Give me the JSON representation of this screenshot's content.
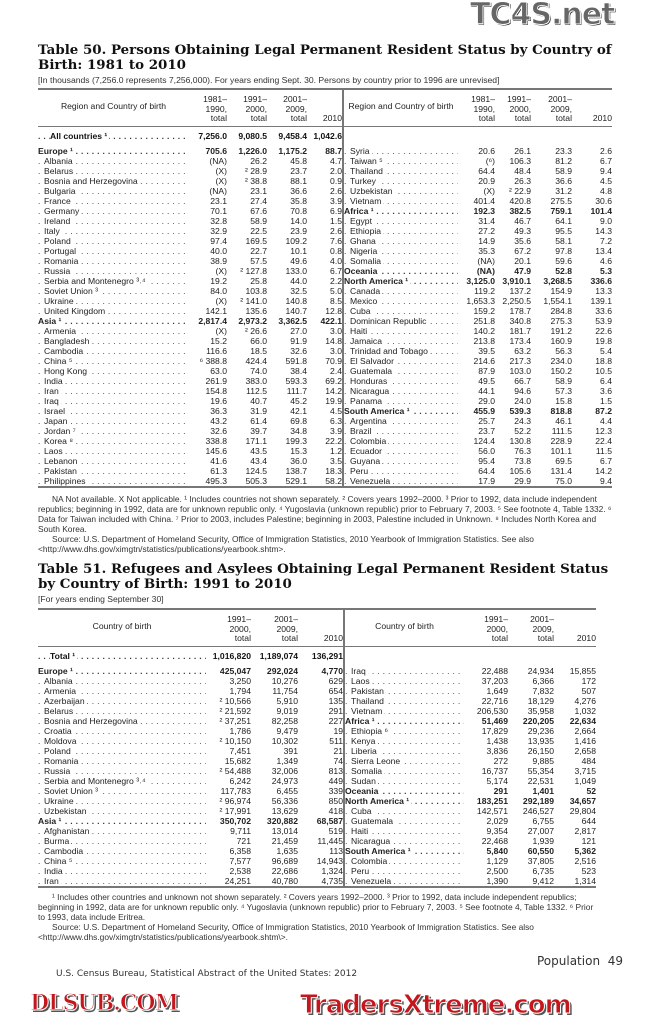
{
  "watermarks": {
    "top": "TC4S.net",
    "middle": "DLSUB.COM",
    "bottom": "TradersXtreme.com"
  },
  "table50": {
    "title_line1": "Table 50. Persons Obtaining Legal Permanent Resident Status by Country of",
    "title_line2": "Birth: 1981 to 2010",
    "subtitle": "[In thousands (7,256.0 represents 7,256,000). For years ending Sept. 30. Persons by country prior to 1996 are unrevised]",
    "headers": [
      "Region and Country of birth",
      "1981– 1990, total",
      "1991– 2000, total",
      "2001– 2009, total",
      "2010"
    ],
    "total": [
      "All countries ¹",
      "7,256.0",
      "9,080.5",
      "9,458.4",
      "1,042.6"
    ],
    "left_rows": [
      [
        "Europe ¹",
        "705.6",
        "1,226.0",
        "1,175.2",
        "88.7",
        1
      ],
      [
        "Albania",
        "(NA)",
        "26.2",
        "45.8",
        "4.7",
        0
      ],
      [
        "Belarus",
        "(X)",
        "² 28.9",
        "23.7",
        "2.0",
        0
      ],
      [
        "Bosnia and Herzegovina",
        "(X)",
        "² 38.8",
        "88.1",
        "0.9",
        0
      ],
      [
        "Bulgaria",
        "(NA)",
        "23.1",
        "36.6",
        "2.6",
        0
      ],
      [
        "France",
        "23.1",
        "27.4",
        "35.8",
        "3.9",
        0
      ],
      [
        "Germany",
        "70.1",
        "67.6",
        "70.8",
        "6.9",
        0
      ],
      [
        "Ireland",
        "32.8",
        "58.9",
        "14.0",
        "1.5",
        0
      ],
      [
        "Italy",
        "32.9",
        "22.5",
        "23.9",
        "2.6",
        0
      ],
      [
        "Poland",
        "97.4",
        "169.5",
        "109.2",
        "7.6",
        0
      ],
      [
        "Portugal",
        "40.0",
        "22.7",
        "10.1",
        "0.8",
        0
      ],
      [
        "Romania",
        "38.9",
        "57.5",
        "49.6",
        "4.0",
        0
      ],
      [
        "Russia",
        "(X)",
        "² 127.8",
        "133.0",
        "6.7",
        0
      ],
      [
        "Serbia and Montenegro ³˒⁴",
        "19.2",
        "25.8",
        "44.0",
        "2.2",
        0
      ],
      [
        "Soviet Union ³",
        "84.0",
        "103.8",
        "32.5",
        "5.0",
        0
      ],
      [
        "Ukraine",
        "(X)",
        "² 141.0",
        "140.8",
        "8.5",
        0
      ],
      [
        "United Kingdom",
        "142.1",
        "135.6",
        "140.7",
        "12.8",
        0
      ],
      [
        "Asia ¹",
        "2,817.4",
        "2,973.2",
        "3,362.5",
        "422.1",
        1
      ],
      [
        "Armenia",
        "(X)",
        "² 26.6",
        "27.0",
        "3.0",
        0
      ],
      [
        "Bangladesh",
        "15.2",
        "66.0",
        "91.9",
        "14.8",
        0
      ],
      [
        "Cambodia",
        "116.6",
        "18.5",
        "32.6",
        "3.0",
        0
      ],
      [
        "China ⁵",
        "⁶ 388.8",
        "424.4",
        "591.8",
        "70.9",
        0
      ],
      [
        "Hong Kong",
        "63.0",
        "74.0",
        "38.4",
        "2.4",
        0
      ],
      [
        "India",
        "261.9",
        "383.0",
        "593.3",
        "69.2",
        0
      ],
      [
        "Iran",
        "154.8",
        "112.5",
        "111.7",
        "14.2",
        0
      ],
      [
        "Iraq",
        "19.6",
        "40.7",
        "45.2",
        "19.9",
        0
      ],
      [
        "Israel",
        "36.3",
        "31.9",
        "42.1",
        "4.5",
        0
      ],
      [
        "Japan",
        "43.2",
        "61.4",
        "69.8",
        "6.3",
        0
      ],
      [
        "Jordan ⁷",
        "32.6",
        "39.7",
        "34.8",
        "3.9",
        0
      ],
      [
        "Korea ⁸",
        "338.8",
        "171.1",
        "199.3",
        "22.2",
        0
      ],
      [
        "Laos",
        "145.6",
        "43.5",
        "15.3",
        "1.2",
        0
      ],
      [
        "Lebanon",
        "41.6",
        "43.4",
        "36.0",
        "3.5",
        0
      ],
      [
        "Pakistan",
        "61.3",
        "124.5",
        "138.7",
        "18.3",
        0
      ],
      [
        "Philippines",
        "495.3",
        "505.3",
        "529.1",
        "58.2",
        0
      ]
    ],
    "right_rows": [
      [
        "Syria",
        "20.6",
        "26.1",
        "23.3",
        "2.6",
        0
      ],
      [
        "Taiwan ⁵",
        "(⁶)",
        "106.3",
        "81.2",
        "6.7",
        0
      ],
      [
        "Thailand",
        "64.4",
        "48.4",
        "58.9",
        "9.4",
        0
      ],
      [
        "Turkey",
        "20.9",
        "26.3",
        "36.6",
        "4.5",
        0
      ],
      [
        "Uzbekistan",
        "(X)",
        "² 22.9",
        "31.2",
        "4.8",
        0
      ],
      [
        "Vietnam",
        "401.4",
        "420.8",
        "275.5",
        "30.6",
        0
      ],
      [
        "Africa ¹",
        "192.3",
        "382.5",
        "759.1",
        "101.4",
        1
      ],
      [
        "Egypt",
        "31.4",
        "46.7",
        "64.1",
        "9.0",
        0
      ],
      [
        "Ethiopia",
        "27.2",
        "49.3",
        "95.5",
        "14.3",
        0
      ],
      [
        "Ghana",
        "14.9",
        "35.6",
        "58.1",
        "7.2",
        0
      ],
      [
        "Nigeria",
        "35.3",
        "67.2",
        "97.8",
        "13.4",
        0
      ],
      [
        "Somalia",
        "(NA)",
        "20.1",
        "59.6",
        "4.6",
        0
      ],
      [
        "Oceania",
        "(NA)",
        "47.9",
        "52.8",
        "5.3",
        1
      ],
      [
        "North America ¹",
        "3,125.0",
        "3,910.1",
        "3,268.5",
        "336.6",
        1
      ],
      [
        "Canada",
        "119.2",
        "137.2",
        "154.9",
        "13.3",
        0
      ],
      [
        "Mexico",
        "1,653.3",
        "2,250.5",
        "1,554.1",
        "139.1",
        0
      ],
      [
        "Cuba",
        "159.2",
        "178.7",
        "284.8",
        "33.6",
        0
      ],
      [
        "Dominican Republic",
        "251.8",
        "340.8",
        "275.3",
        "53.9",
        0
      ],
      [
        "Haiti",
        "140.2",
        "181.7",
        "191.2",
        "22.6",
        0
      ],
      [
        "Jamaica",
        "213.8",
        "173.4",
        "160.9",
        "19.8",
        0
      ],
      [
        "Trinidad and Tobago",
        "39.5",
        "63.2",
        "56.3",
        "5.4",
        0
      ],
      [
        "El Salvador",
        "214.6",
        "217.3",
        "234.0",
        "18.8",
        0
      ],
      [
        "Guatemala",
        "87.9",
        "103.0",
        "150.2",
        "10.5",
        0
      ],
      [
        "Honduras",
        "49.5",
        "66.7",
        "58.9",
        "6.4",
        0
      ],
      [
        "Nicaragua",
        "44.1",
        "94.6",
        "57.3",
        "3.6",
        0
      ],
      [
        "Panama",
        "29.0",
        "24.0",
        "15.8",
        "1.5",
        0
      ],
      [
        "South America ¹",
        "455.9",
        "539.3",
        "818.8",
        "87.2",
        1
      ],
      [
        "Argentina",
        "25.7",
        "24.3",
        "46.1",
        "4.4",
        0
      ],
      [
        "Brazil",
        "23.7",
        "52.2",
        "111.5",
        "12.3",
        0
      ],
      [
        "Colombia",
        "124.4",
        "130.8",
        "228.9",
        "22.4",
        0
      ],
      [
        "Ecuador",
        "56.0",
        "76.3",
        "101.1",
        "11.5",
        0
      ],
      [
        "Guyana",
        "95.4",
        "73.8",
        "69.5",
        "6.7",
        0
      ],
      [
        "Peru",
        "64.4",
        "105.6",
        "131.4",
        "14.2",
        0
      ],
      [
        "Venezuela",
        "17.9",
        "29.9",
        "75.0",
        "9.4",
        0
      ]
    ],
    "notes": "NA Not available. X Not applicable. ¹ Includes countries not shown separately. ² Covers years 1992–2000. ³ Prior to 1992, data include independent republics; beginning in 1992, data are for unknown republic only. ⁴ Yugoslavia (unknown republic) prior to February 7, 2003. ⁵ See footnote 4, Table 1332. ⁶ Data for Taiwan included with China. ⁷ Prior to 2003, includes Palestine; beginning in 2003, Palestine included in Unknown. ⁸ Includes North Korea and South Korea.",
    "source": "Source: U.S. Department of Homeland Security, Office of Immigration Statistics, 2010 Yearbook of Immigration Statistics. See also <http://www.dhs.gov/ximgtn/statistics/publications/yearbook.shtm>."
  },
  "table51": {
    "title_line1": "Table 51. Refugees and Asylees Obtaining Legal Permanent Resident Status",
    "title_line2": "by Country of Birth: 1991 to 2010",
    "subtitle": "[For years ending September 30]",
    "headers": [
      "Country of birth",
      "1991– 2000, total",
      "2001– 2009, total",
      "2010"
    ],
    "total": [
      "Total ¹",
      "1,016,820",
      "1,189,074",
      "136,291"
    ],
    "left_rows": [
      [
        "Europe ¹",
        "425,047",
        "292,024",
        "4,770",
        1
      ],
      [
        "Albania",
        "3,250",
        "10,276",
        "629",
        0
      ],
      [
        "Armenia",
        "1,794",
        "11,754",
        "654",
        0
      ],
      [
        "Azerbaijan",
        "² 10,566",
        "5,910",
        "135",
        0
      ],
      [
        "Belarus",
        "² 21,592",
        "9,019",
        "291",
        0
      ],
      [
        "Bosnia and Herzegovina",
        "² 37,251",
        "82,258",
        "227",
        0
      ],
      [
        "Croatia",
        "1,786",
        "9,479",
        "19",
        0
      ],
      [
        "Moldova",
        "² 10,150",
        "10,302",
        "511",
        0
      ],
      [
        "Poland",
        "7,451",
        "391",
        "21",
        0
      ],
      [
        "Romania",
        "15,682",
        "1,349",
        "74",
        0
      ],
      [
        "Russia",
        "² 54,488",
        "32,006",
        "813",
        0
      ],
      [
        "Serbia and Montenegro ³˒⁴",
        "6,242",
        "24,973",
        "449",
        0
      ],
      [
        "Soviet Union ³",
        "117,783",
        "6,455",
        "339",
        0
      ],
      [
        "Ukraine",
        "² 96,974",
        "56,336",
        "850",
        0
      ],
      [
        "Uzbekistan",
        "² 17,991",
        "13,629",
        "418",
        0
      ],
      [
        "Asia ¹",
        "350,702",
        "320,882",
        "68,587",
        1
      ],
      [
        "Afghanistan",
        "9,711",
        "13,014",
        "519",
        0
      ],
      [
        "Burma",
        "721",
        "21,459",
        "11,445",
        0
      ],
      [
        "Cambodia",
        "6,358",
        "1,635",
        "113",
        0
      ],
      [
        "China ⁵",
        "7,577",
        "96,689",
        "14,943",
        0
      ],
      [
        "India",
        "2,538",
        "22,686",
        "1,324",
        0
      ],
      [
        "Iran",
        "24,251",
        "40,780",
        "4,735",
        0
      ]
    ],
    "right_rows": [
      [
        "Iraq",
        "22,488",
        "24,934",
        "15,855",
        0
      ],
      [
        "Laos",
        "37,203",
        "6,366",
        "172",
        0
      ],
      [
        "Pakistan",
        "1,649",
        "7,832",
        "507",
        0
      ],
      [
        "Thailand",
        "22,716",
        "18,129",
        "4,276",
        0
      ],
      [
        "Vietnam",
        "206,530",
        "35,958",
        "1,032",
        0
      ],
      [
        "Africa ¹",
        "51,469",
        "220,205",
        "22,634",
        1
      ],
      [
        "Ethiopia ⁶",
        "17,829",
        "29,236",
        "2,664",
        0
      ],
      [
        "Kenya",
        "1,438",
        "13,935",
        "1,416",
        0
      ],
      [
        "Liberia",
        "3,836",
        "26,150",
        "2,658",
        0
      ],
      [
        "Sierra Leone",
        "272",
        "9,885",
        "484",
        0
      ],
      [
        "Somalia",
        "16,737",
        "55,354",
        "3,715",
        0
      ],
      [
        "Sudan",
        "5,174",
        "22,531",
        "1,049",
        0
      ],
      [
        "Oceania",
        "291",
        "1,401",
        "52",
        1
      ],
      [
        "North America ¹",
        "183,251",
        "292,189",
        "34,657",
        1
      ],
      [
        "Cuba",
        "142,571",
        "246,527",
        "29,804",
        0
      ],
      [
        "Guatemala",
        "2,029",
        "6,755",
        "644",
        0
      ],
      [
        "Haiti",
        "9,354",
        "27,007",
        "2,817",
        0
      ],
      [
        "Nicaragua",
        "22,468",
        "1,939",
        "121",
        0
      ],
      [
        "South America ¹",
        "5,840",
        "60,550",
        "5,362",
        1
      ],
      [
        "Colombia",
        "1,129",
        "37,805",
        "2,516",
        0
      ],
      [
        "Peru",
        "2,500",
        "6,735",
        "523",
        0
      ],
      [
        "Venezuela",
        "1,390",
        "9,412",
        "1,314",
        0
      ]
    ],
    "notes": "¹ Includes other countries and unknown not shown separately. ² Covers years 1992–2000. ³ Prior to 1992, data include independent republics; beginning in 1992, data are for unknown republic only. ⁴ Yugoslavia (unknown republic) prior to February 7, 2003. ⁵ See footnote 4, Table 1332. ⁶ Prior to 1993, data include Eritrea.",
    "source": "Source: U.S. Department of Homeland Security, Office of Immigration Statistics, 2010 Yearbook of Immigration Statistics. See also <http://www.dhs.gov/ximgtn/statistics/publications/yearbook.shtm\\>."
  },
  "footer": {
    "section": "Population",
    "page": "49",
    "publisher": "U.S. Census Bureau, Statistical Abstract of the United States: 2012"
  }
}
